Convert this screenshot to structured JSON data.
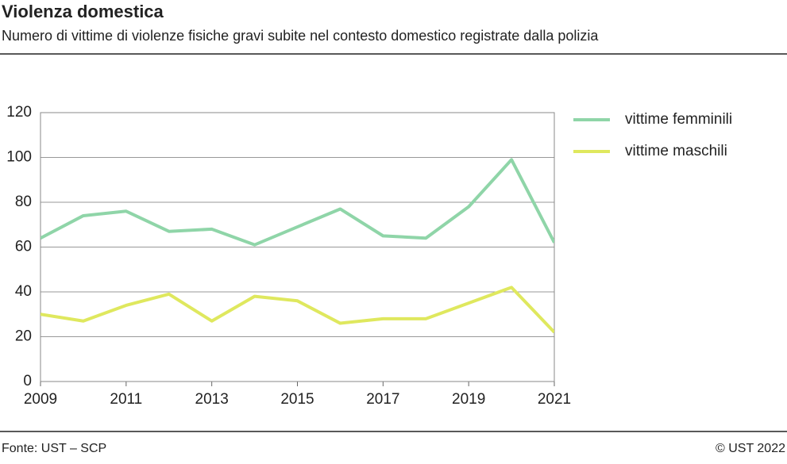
{
  "chart_data": {
    "type": "line",
    "title": "Violenza domestica",
    "subtitle": "Numero di vittime di violenze fisiche gravi subite nel contesto domestico registrate dalla polizia",
    "x": [
      2009,
      2010,
      2011,
      2012,
      2013,
      2014,
      2015,
      2016,
      2017,
      2018,
      2019,
      2020,
      2021
    ],
    "series": [
      {
        "name": "vittime femminili",
        "color": "#8fd5a8",
        "values": [
          64,
          74,
          76,
          67,
          68,
          61,
          69,
          77,
          65,
          64,
          78,
          99,
          62
        ]
      },
      {
        "name": "vittime maschili",
        "color": "#dfe85e",
        "values": [
          30,
          27,
          34,
          39,
          27,
          38,
          36,
          26,
          28,
          28,
          35,
          42,
          22
        ]
      }
    ],
    "xlim": [
      2009,
      2021
    ],
    "xticks": [
      2009,
      2011,
      2013,
      2015,
      2017,
      2019,
      2021
    ],
    "ylim": [
      0,
      120
    ],
    "yticks": [
      0,
      20,
      40,
      60,
      80,
      100,
      120
    ],
    "grid": true,
    "source": "Fonte: UST – SCP",
    "credit": "© UST 2022"
  }
}
